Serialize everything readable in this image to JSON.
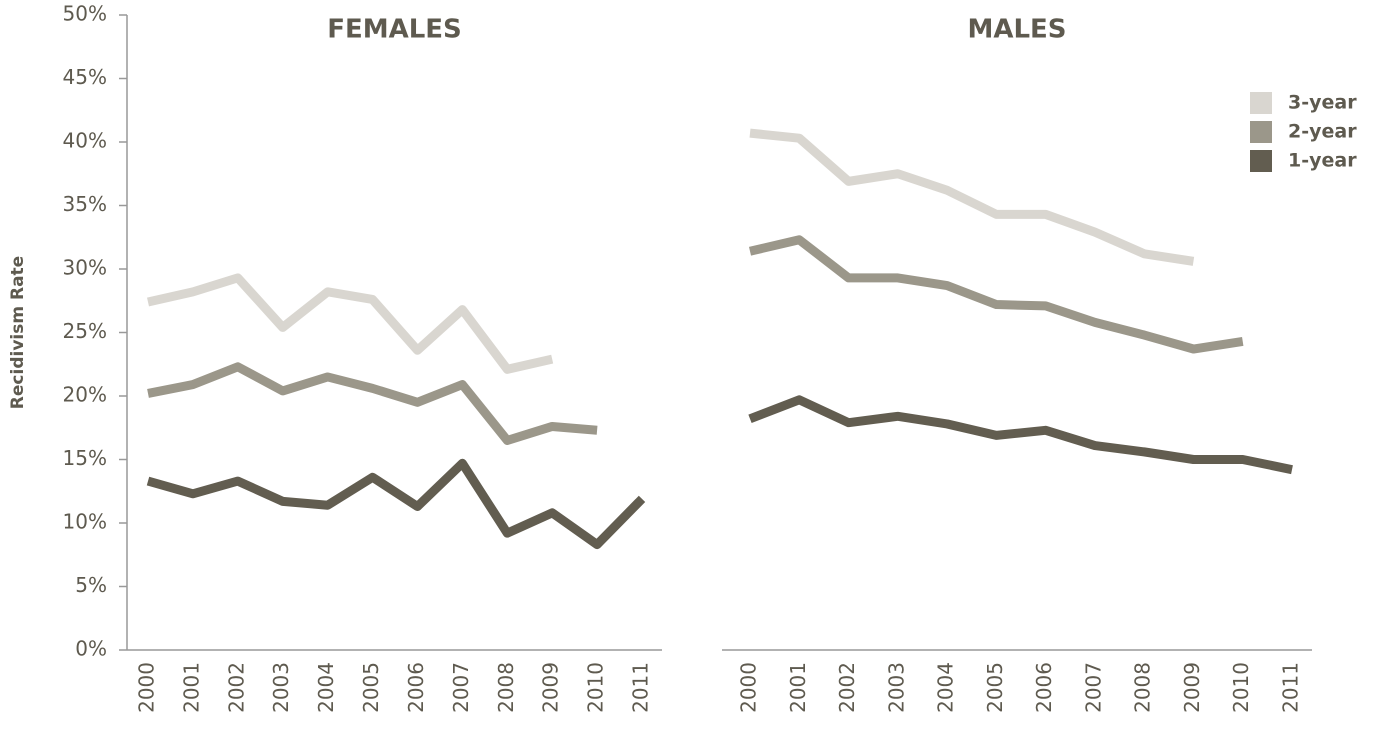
{
  "chart_data": [
    {
      "type": "line",
      "title": "FEMALES",
      "y_label": "Recidivism Rate",
      "categories": [
        "2000",
        "2001",
        "2002",
        "2003",
        "2004",
        "2005",
        "2006",
        "2007",
        "2008",
        "2009",
        "2010",
        "2011"
      ],
      "ylim": [
        0,
        50
      ],
      "yticks": [
        {
          "value": 0,
          "label": "0%"
        },
        {
          "value": 5,
          "label": "5%"
        },
        {
          "value": 10,
          "label": "10%"
        },
        {
          "value": 15,
          "label": "15%"
        },
        {
          "value": 20,
          "label": "20%"
        },
        {
          "value": 25,
          "label": "25%"
        },
        {
          "value": 30,
          "label": "30%"
        },
        {
          "value": 35,
          "label": "35%"
        },
        {
          "value": 40,
          "label": "40%"
        },
        {
          "value": 45,
          "label": "45%"
        },
        {
          "value": 50,
          "label": "50%"
        }
      ],
      "series": [
        {
          "name": "3-year",
          "color": "#d9d6d0",
          "values": [
            27.4,
            28.2,
            29.3,
            25.4,
            28.2,
            27.6,
            23.6,
            26.8,
            22.1,
            22.9,
            null,
            null
          ]
        },
        {
          "name": "2-year",
          "color": "#9b978a",
          "values": [
            20.2,
            20.9,
            22.3,
            20.4,
            21.5,
            20.6,
            19.5,
            20.9,
            16.5,
            17.6,
            17.3,
            null
          ]
        },
        {
          "name": "1-year",
          "color": "#625d50",
          "values": [
            13.3,
            12.3,
            13.3,
            11.7,
            11.4,
            13.6,
            11.3,
            14.7,
            9.2,
            10.8,
            8.3,
            11.9
          ]
        }
      ]
    },
    {
      "type": "line",
      "title": "MALES",
      "legend": "top-right",
      "categories": [
        "2000",
        "2001",
        "2002",
        "2003",
        "2004",
        "2005",
        "2006",
        "2007",
        "2008",
        "2009",
        "2010",
        "2011"
      ],
      "ylim": [
        0,
        50
      ],
      "series": [
        {
          "name": "3-year",
          "color": "#d9d6d0",
          "values": [
            40.7,
            40.3,
            36.9,
            37.5,
            36.2,
            34.3,
            34.3,
            32.9,
            31.2,
            30.6,
            null,
            null
          ]
        },
        {
          "name": "2-year",
          "color": "#9b978a",
          "values": [
            31.4,
            32.3,
            29.3,
            29.3,
            28.7,
            27.2,
            27.1,
            25.8,
            24.8,
            23.7,
            24.3,
            null
          ]
        },
        {
          "name": "1-year",
          "color": "#625d50",
          "values": [
            18.2,
            19.7,
            17.9,
            18.4,
            17.8,
            16.9,
            17.3,
            16.1,
            15.6,
            15.0,
            15.0,
            14.2
          ]
        }
      ]
    }
  ]
}
